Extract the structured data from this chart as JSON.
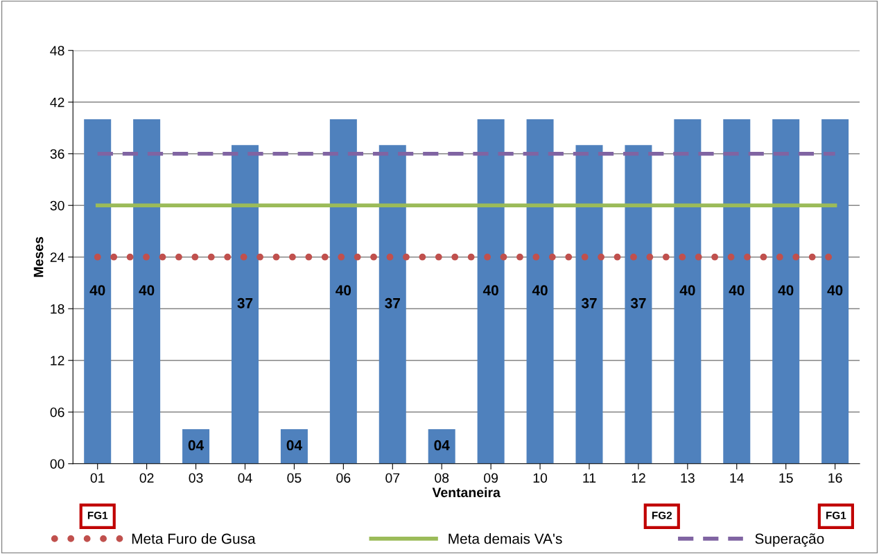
{
  "chart_data": {
    "type": "bar",
    "xlabel": "Ventaneira",
    "ylabel": "Meses",
    "categories": [
      "01",
      "02",
      "03",
      "04",
      "05",
      "06",
      "07",
      "08",
      "09",
      "10",
      "11",
      "12",
      "13",
      "14",
      "15",
      "16"
    ],
    "ylim": [
      0,
      48
    ],
    "yticks": [
      {
        "value": 0,
        "label": "00"
      },
      {
        "value": 6,
        "label": "06"
      },
      12,
      18,
      24,
      30,
      36,
      42,
      48
    ],
    "grid": "y",
    "legend": "bottom",
    "series": [
      {
        "color": "#4f81bd",
        "values": [
          40,
          40,
          4,
          37,
          4,
          40,
          37,
          4,
          40,
          40,
          37,
          37,
          40,
          40,
          40,
          40
        ],
        "value_labels": [
          "40",
          "40",
          "04",
          "37",
          "04",
          "40",
          "37",
          "04",
          "40",
          "40",
          "37",
          "37",
          "40",
          "40",
          "40",
          "40"
        ]
      },
      {
        "type": "line",
        "name": "Meta Furo de Gusa",
        "color": "#c0504d",
        "line_style": "dotted",
        "values": [
          24,
          24,
          24,
          24,
          24,
          24,
          24,
          24,
          24,
          24,
          24,
          24,
          24,
          24,
          24,
          24
        ]
      },
      {
        "type": "line",
        "name": "Meta demais VA's",
        "color": "#9bbb59",
        "line_style": "solid",
        "values": [
          30,
          30,
          30,
          30,
          30,
          30,
          30,
          30,
          30,
          30,
          30,
          30,
          30,
          30,
          30,
          30
        ]
      },
      {
        "type": "line",
        "name": "Superação",
        "color": "#8064a2",
        "line_style": "dashed",
        "values": [
          36,
          36,
          36,
          36,
          36,
          36,
          36,
          36,
          36,
          36,
          36,
          36,
          36,
          36,
          36,
          36
        ]
      }
    ],
    "annotations": [
      "FG1",
      "FG2",
      "FG1"
    ]
  }
}
